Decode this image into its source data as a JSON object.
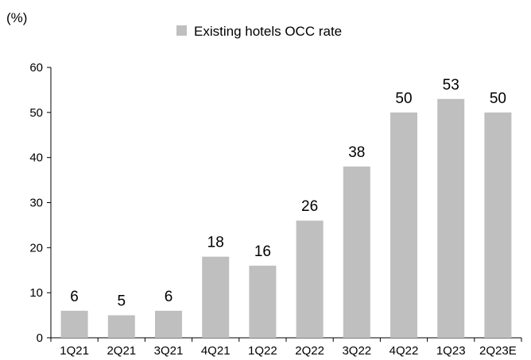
{
  "chart_data": {
    "type": "bar",
    "ylabel": "(%)",
    "legend": {
      "position": "top-center",
      "entries": [
        "Existing hotels OCC rate"
      ]
    },
    "categories": [
      "1Q21",
      "2Q21",
      "3Q21",
      "4Q21",
      "1Q22",
      "2Q22",
      "3Q22",
      "4Q22",
      "1Q23",
      "2Q23E"
    ],
    "series": [
      {
        "name": "Existing hotels OCC rate",
        "values": [
          6,
          5,
          6,
          18,
          16,
          26,
          38,
          50,
          53,
          50
        ],
        "color": "#bfbfbf"
      }
    ],
    "data_labels": [
      "6",
      "5",
      "6",
      "18",
      "16",
      "26",
      "38",
      "50",
      "53",
      "50"
    ],
    "ylim": [
      0,
      60
    ],
    "yticks": [
      0,
      10,
      20,
      30,
      40,
      50,
      60
    ],
    "grid": false
  }
}
